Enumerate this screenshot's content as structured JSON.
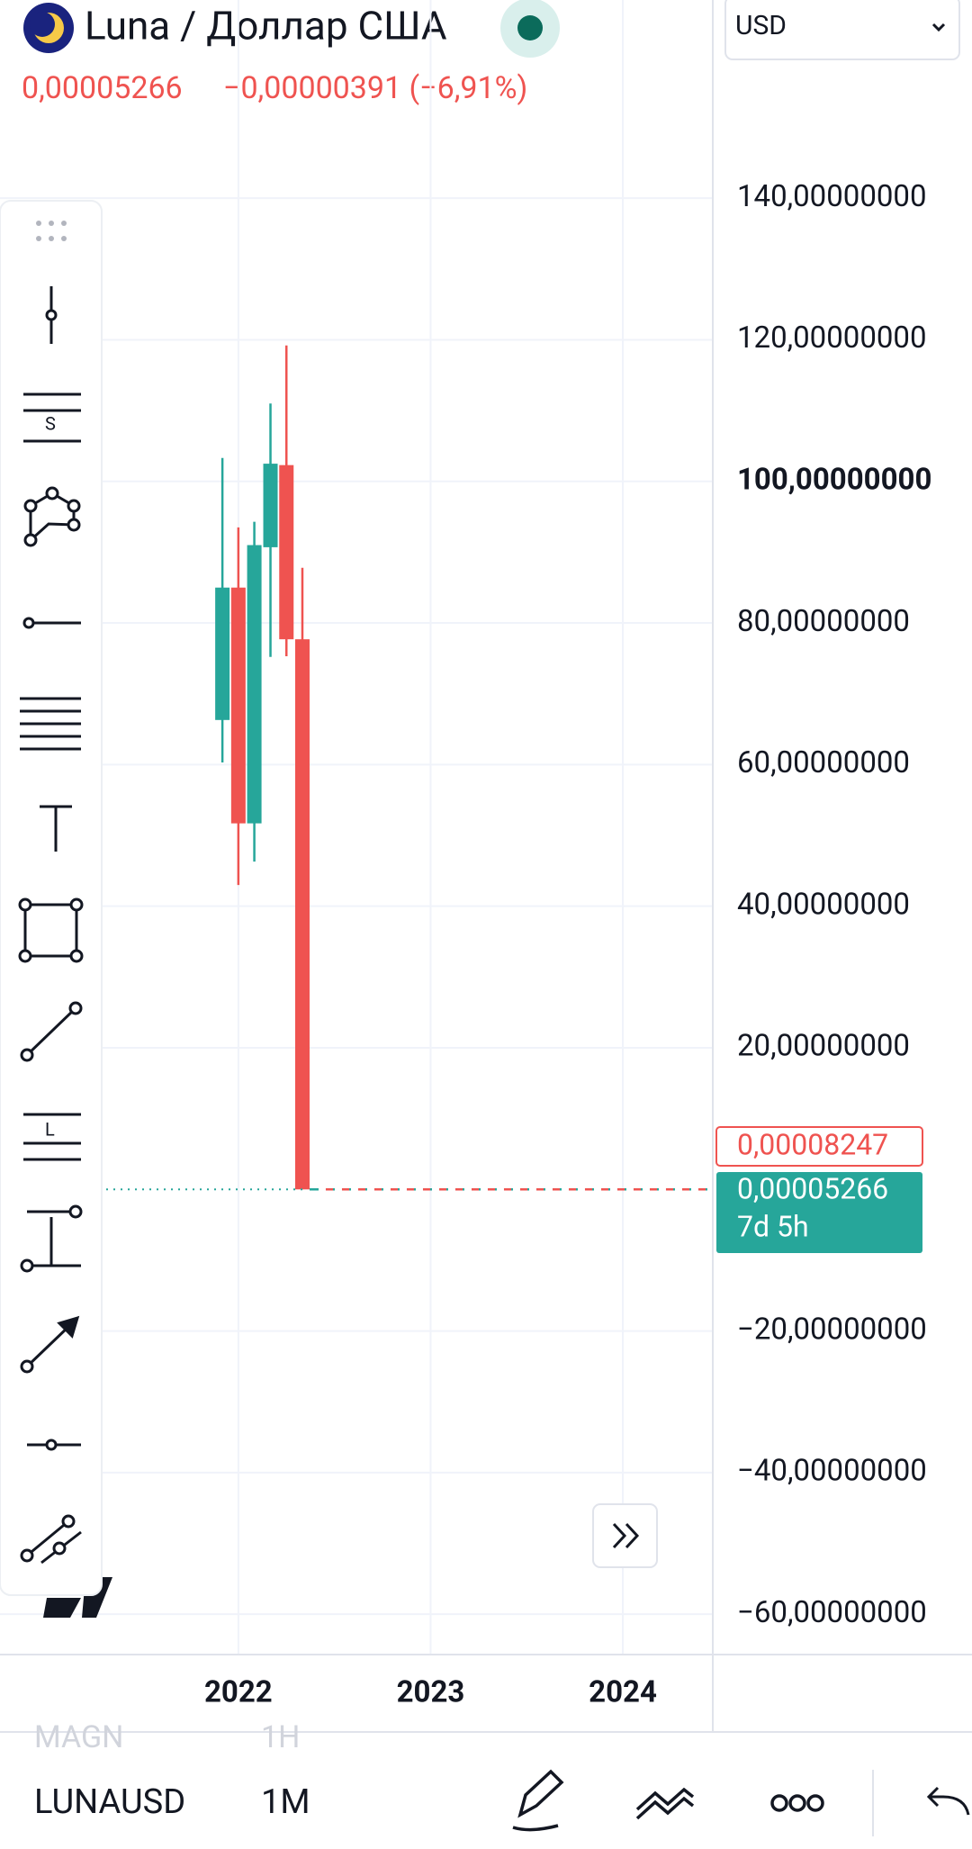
{
  "header": {
    "title": "Luna / Доллар США",
    "price": "0,00005266",
    "change": "−0,00000391 (−6,91%)",
    "currency": "USD"
  },
  "chart_data": {
    "type": "candlestick",
    "x": [
      2021.917,
      2022.0,
      2022.083,
      2022.167,
      2022.25,
      2022.333
    ],
    "open": [
      66.3,
      85.0,
      51.7,
      90.7,
      102.3,
      77.7
    ],
    "high": [
      103.3,
      93.5,
      94.3,
      111.0,
      119.2,
      87.8
    ],
    "low": [
      60.3,
      43.0,
      46.3,
      75.2,
      75.3,
      0
    ],
    "close": [
      85.0,
      51.7,
      91.0,
      102.5,
      77.7,
      0
    ],
    "up_color": "#26a69a",
    "down_color": "#ef5350",
    "xlim": [
      2020.76,
      2024.468
    ],
    "xticks": [
      2022,
      2023,
      2024
    ],
    "ylim": [
      -65.7,
      159.6
    ],
    "yticks": [
      {
        "value": 140,
        "label": "140,00000000"
      },
      {
        "value": 120,
        "label": "120,00000000"
      },
      {
        "value": 100,
        "label": "100,00000000"
      },
      {
        "value": 80,
        "label": "80,00000000"
      },
      {
        "value": 60,
        "label": "60,00000000"
      },
      {
        "value": 40,
        "label": "40,00000000"
      },
      {
        "value": 20,
        "label": "20,00000000"
      },
      {
        "value": -20,
        "label": "−20,00000000"
      },
      {
        "value": -40,
        "label": "−40,00000000"
      },
      {
        "value": -60,
        "label": "−60,00000000"
      }
    ],
    "grid": true,
    "tags": {
      "high_tag": "0,00008247",
      "last_price": "0,00005266",
      "countdown": "7d 5h"
    }
  },
  "footer": {
    "symbol": "LUNAUSD",
    "interval": "1M",
    "prev_symbol": "MAGN",
    "prev_interval": "1H"
  }
}
